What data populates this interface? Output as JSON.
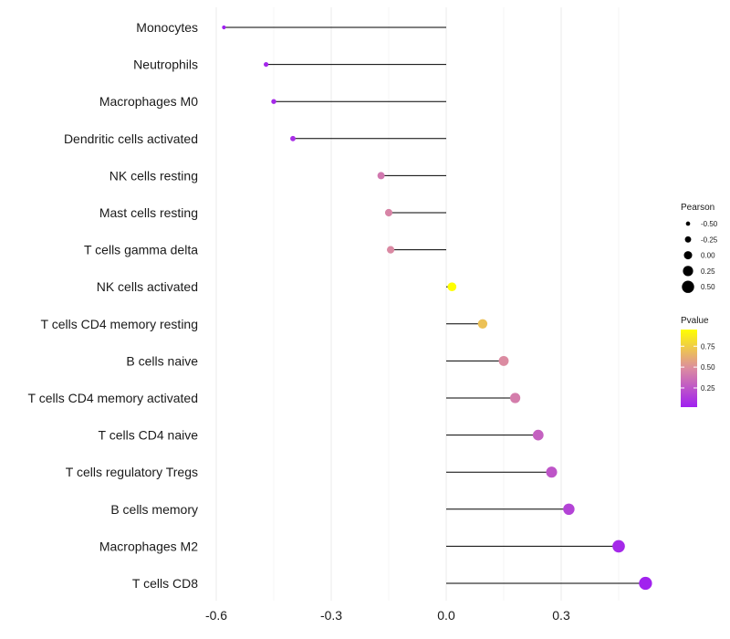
{
  "chart_data": {
    "type": "lollipop",
    "title": "",
    "xlabel": "",
    "ylabel": "",
    "xlim": [
      -0.6,
      0.53
    ],
    "x_ticks": [
      -0.6,
      -0.3,
      0.0,
      0.3
    ],
    "x_tick_labels": [
      "-0.6",
      "-0.3",
      "0.0",
      "0.3"
    ],
    "grid": "vertical",
    "points": [
      {
        "label": "Monocytes",
        "pearson": -0.58,
        "pvalue": 0.02
      },
      {
        "label": "Neutrophils",
        "pearson": -0.47,
        "pvalue": 0.05
      },
      {
        "label": "Macrophages M0",
        "pearson": -0.45,
        "pvalue": 0.06
      },
      {
        "label": "Dendritic cells activated",
        "pearson": -0.4,
        "pvalue": 0.08
      },
      {
        "label": "NK cells resting",
        "pearson": -0.17,
        "pvalue": 0.4
      },
      {
        "label": "Mast cells resting",
        "pearson": -0.15,
        "pvalue": 0.45
      },
      {
        "label": "T cells gamma delta",
        "pearson": -0.145,
        "pvalue": 0.47
      },
      {
        "label": "NK cells activated",
        "pearson": 0.015,
        "pvalue": 0.95
      },
      {
        "label": "T cells CD4 memory resting",
        "pearson": 0.095,
        "pvalue": 0.7
      },
      {
        "label": "B cells naive",
        "pearson": 0.15,
        "pvalue": 0.48
      },
      {
        "label": "T cells CD4 memory activated",
        "pearson": 0.18,
        "pvalue": 0.42
      },
      {
        "label": "T cells CD4 naive",
        "pearson": 0.24,
        "pvalue": 0.3
      },
      {
        "label": "T cells regulatory  Tregs ",
        "pearson": 0.275,
        "pvalue": 0.25
      },
      {
        "label": "B cells memory",
        "pearson": 0.32,
        "pvalue": 0.17
      },
      {
        "label": "Macrophages M2",
        "pearson": 0.45,
        "pvalue": 0.06
      },
      {
        "label": "T cells CD8",
        "pearson": 0.52,
        "pvalue": 0.03
      }
    ],
    "legend_size": {
      "title": "Pearson",
      "values": [
        -0.5,
        -0.25,
        0.0,
        0.25,
        0.5
      ],
      "labels": [
        "-0.50",
        "-0.25",
        "0.00",
        "0.25",
        "0.50"
      ]
    },
    "legend_color": {
      "title": "Pvalue",
      "range": [
        0.02,
        0.95
      ],
      "ticks": [
        0.75,
        0.5,
        0.25
      ],
      "tick_labels": [
        "0.75",
        "0.50",
        "0.25"
      ],
      "colors": {
        "low": "#a020f0",
        "mid": "#dc8ca0",
        "high": "#ffff00"
      }
    },
    "stem_color": "#000000",
    "grid_color": "#ebebeb"
  }
}
